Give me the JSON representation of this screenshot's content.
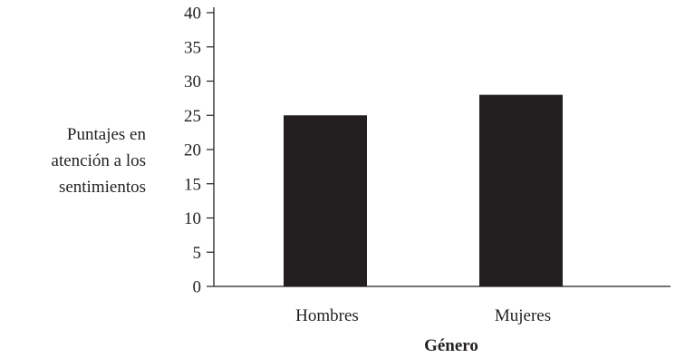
{
  "chart_data": {
    "type": "bar",
    "title": "",
    "xlabel": "Género",
    "ylabel_lines": [
      "Puntajes en",
      "atención a los",
      "sentimientos"
    ],
    "categories": [
      "Hombres",
      "Mujeres"
    ],
    "values": [
      25,
      28
    ],
    "ylim": [
      0,
      40
    ],
    "yticks": [
      0,
      5,
      10,
      15,
      20,
      25,
      30,
      35,
      40
    ],
    "grid": false,
    "legend": "none",
    "bar_color": "#231f20",
    "axis_color": "#231f20"
  }
}
